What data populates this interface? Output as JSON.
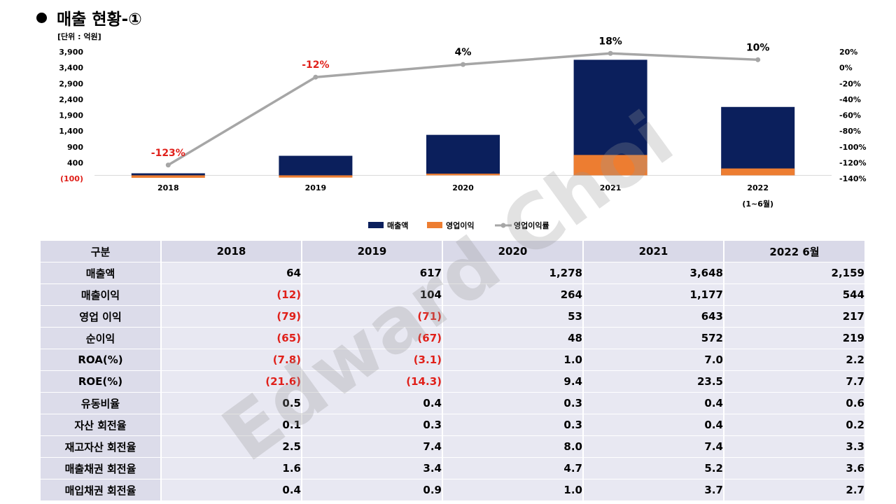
{
  "title": "매출 현황-①",
  "unit": "[단위 : 억원]",
  "watermark": "Edward Choi",
  "colors": {
    "bar_revenue": "#0b1f5c",
    "bar_op": "#ed7d31",
    "line": "#a6a6a6",
    "neg_label": "#e0201a"
  },
  "chart_data": {
    "type": "bar",
    "categories": [
      "2018",
      "2019",
      "2020",
      "2021",
      "2022\n(1~6월)"
    ],
    "series": [
      {
        "name": "매출액",
        "type": "bar",
        "axis": "left",
        "values": [
          64,
          617,
          1278,
          3648,
          2159
        ]
      },
      {
        "name": "영업이익",
        "type": "bar",
        "axis": "left",
        "values": [
          -79,
          -71,
          53,
          643,
          217
        ]
      },
      {
        "name": "영업이익률",
        "type": "line",
        "axis": "right",
        "values": [
          -123,
          -12,
          4,
          18,
          10
        ]
      }
    ],
    "data_labels": [
      "-123%",
      "-12%",
      "4%",
      "18%",
      "10%"
    ],
    "y_left": {
      "ticks": [
        "3,900",
        "3,400",
        "2,900",
        "2,400",
        "1,900",
        "1,400",
        "900",
        "400",
        "(100)"
      ],
      "range": [
        -100,
        3900
      ]
    },
    "y_right": {
      "ticks": [
        "20%",
        "0%",
        "-20%",
        "-40%",
        "-60%",
        "-80%",
        "-100%",
        "-120%",
        "-140%"
      ],
      "range": [
        -140,
        20
      ]
    },
    "legend": [
      "매출액",
      "영업이익",
      "영업이익률"
    ],
    "legend_position": "bottom"
  },
  "table": {
    "headers": [
      "구분",
      "2018",
      "2019",
      "2020",
      "2021",
      "2022  6월"
    ],
    "rows": [
      {
        "label": "매출액",
        "values": [
          "64",
          "617",
          "1,278",
          "3,648",
          "2,159"
        ]
      },
      {
        "label": "매출이익",
        "values": [
          "(12)",
          "104",
          "264",
          "1,177",
          "544"
        ]
      },
      {
        "label": "영업  이익",
        "values": [
          "(79)",
          "(71)",
          "53",
          "643",
          "217"
        ]
      },
      {
        "label": "순이익",
        "values": [
          "(65)",
          "(67)",
          "48",
          "572",
          "219"
        ]
      },
      {
        "label": "ROA(%)",
        "values": [
          "(7.8)",
          "(3.1)",
          "1.0",
          "7.0",
          "2.2"
        ]
      },
      {
        "label": "ROE(%)",
        "values": [
          "(21.6)",
          "(14.3)",
          "9.4",
          "23.5",
          "7.7"
        ]
      },
      {
        "label": "유동비율",
        "values": [
          "0.5",
          "0.4",
          "0.3",
          "0.4",
          "0.6"
        ]
      },
      {
        "label": "자산  회전율",
        "values": [
          "0.1",
          "0.3",
          "0.3",
          "0.4",
          "0.2"
        ]
      },
      {
        "label": "재고자산  회전율",
        "values": [
          "2.5",
          "7.4",
          "8.0",
          "7.4",
          "3.3"
        ]
      },
      {
        "label": "매출채권  회전율",
        "values": [
          "1.6",
          "3.4",
          "4.7",
          "5.2",
          "3.6"
        ]
      },
      {
        "label": "매입채권  회전율",
        "values": [
          "0.4",
          "0.9",
          "1.0",
          "3.7",
          "2.7"
        ]
      }
    ]
  }
}
